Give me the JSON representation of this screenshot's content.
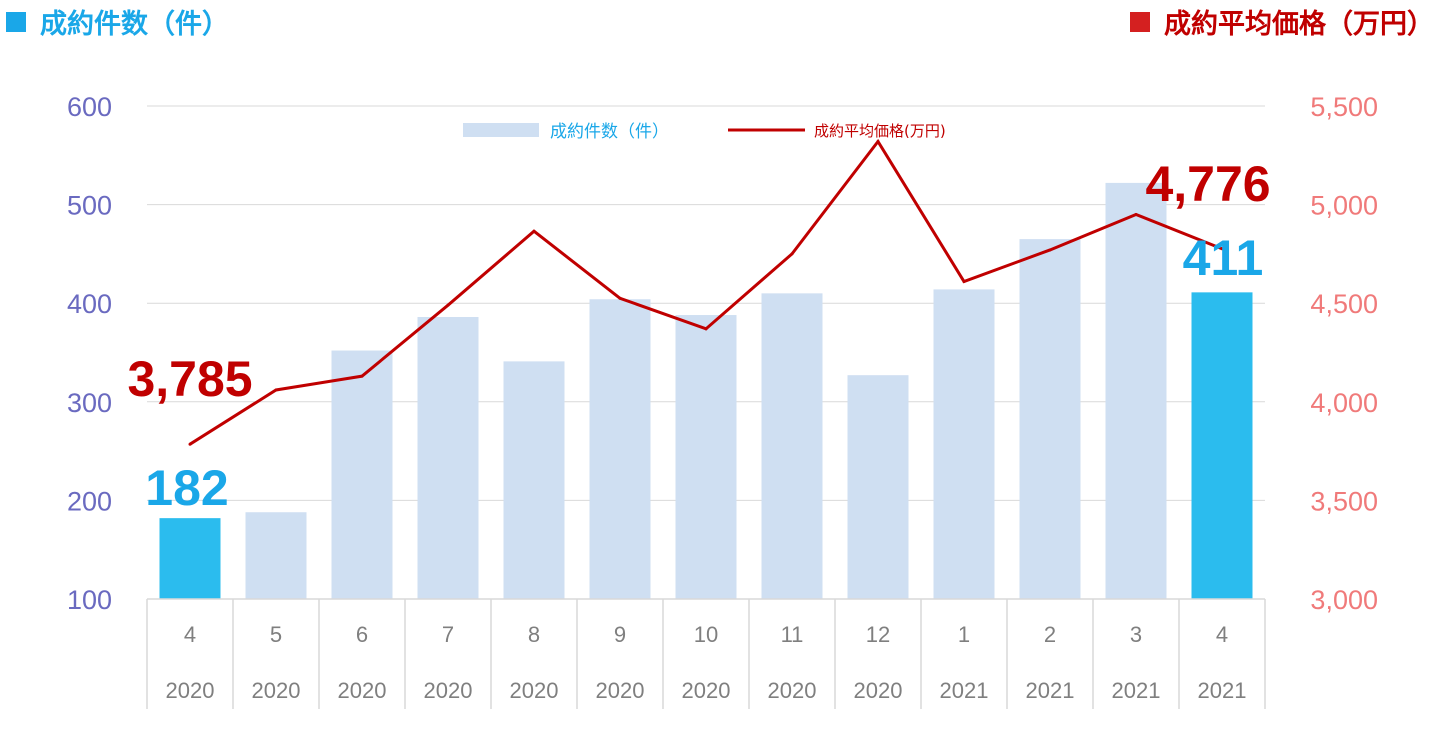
{
  "header": {
    "left_title": "成約件数（件）",
    "right_title": "成約平均価格（万円）"
  },
  "colors": {
    "count_accent": "#1aa7e8",
    "price_accent": "#c00000",
    "bar_light": "#cfdff2",
    "bar_highlight": "#2bbcee",
    "left_axis": "#6a6ac0",
    "right_axis": "#f07a7a",
    "grid": "#d9d9d9"
  },
  "chart_data": {
    "type": "bar+line",
    "categories": [
      {
        "month": "4",
        "year": "2020"
      },
      {
        "month": "5",
        "year": "2020"
      },
      {
        "month": "6",
        "year": "2020"
      },
      {
        "month": "7",
        "year": "2020"
      },
      {
        "month": "8",
        "year": "2020"
      },
      {
        "month": "9",
        "year": "2020"
      },
      {
        "month": "10",
        "year": "2020"
      },
      {
        "month": "11",
        "year": "2020"
      },
      {
        "month": "12",
        "year": "2020"
      },
      {
        "month": "1",
        "year": "2021"
      },
      {
        "month": "2",
        "year": "2021"
      },
      {
        "month": "3",
        "year": "2021"
      },
      {
        "month": "4",
        "year": "2021"
      }
    ],
    "series": [
      {
        "name": "成約件数(件)",
        "type": "bar",
        "axis": "left",
        "values": [
          182,
          188,
          352,
          386,
          341,
          404,
          388,
          410,
          327,
          414,
          465,
          522,
          411
        ],
        "highlight_indices": [
          0,
          12
        ]
      },
      {
        "name": "成約平均価格(万円)",
        "type": "line",
        "axis": "right",
        "values": [
          3785,
          4060,
          4130,
          4490,
          4865,
          4525,
          4370,
          4750,
          5320,
          4610,
          4770,
          4950,
          4776
        ]
      }
    ],
    "left_axis": {
      "ylim": [
        100,
        600
      ],
      "ticks": [
        "100",
        "200",
        "300",
        "400",
        "500",
        "600"
      ]
    },
    "right_axis": {
      "ylim": [
        3000,
        5500
      ],
      "ticks": [
        "3,000",
        "3,500",
        "4,000",
        "4,500",
        "5,000",
        "5,500"
      ]
    },
    "annotations": [
      {
        "text": "3,785",
        "series": "price",
        "index": 0
      },
      {
        "text": "4,776",
        "series": "price",
        "index": 12
      },
      {
        "text": "182",
        "series": "count",
        "index": 0
      },
      {
        "text": "411",
        "series": "count",
        "index": 12
      }
    ],
    "legend": {
      "position": "top-center",
      "bar_label": "成約件数（件）",
      "line_label": "成約平均価格(万円)"
    },
    "grid": true
  }
}
